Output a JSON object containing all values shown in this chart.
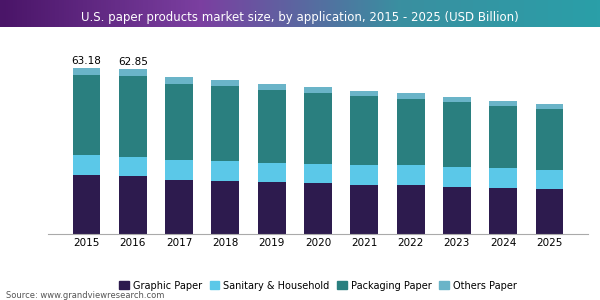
{
  "title": "U.S. paper products market size, by application, 2015 - 2025 (USD Billion)",
  "years": [
    2015,
    2016,
    2017,
    2018,
    2019,
    2020,
    2021,
    2022,
    2023,
    2024,
    2025
  ],
  "graphic_paper": [
    22.5,
    22.0,
    20.5,
    20.2,
    19.8,
    19.3,
    18.8,
    18.5,
    18.0,
    17.5,
    17.0
  ],
  "sanitary_household": [
    7.5,
    7.5,
    7.8,
    7.6,
    7.4,
    7.4,
    7.6,
    7.6,
    7.5,
    7.5,
    7.5
  ],
  "packaging_paper": [
    30.5,
    30.7,
    29.0,
    28.6,
    27.8,
    27.0,
    26.0,
    25.5,
    24.8,
    23.8,
    23.0
  ],
  "others_paper": [
    2.68,
    2.65,
    2.5,
    2.4,
    2.3,
    2.2,
    2.1,
    2.1,
    2.0,
    2.0,
    1.9
  ],
  "totals_2015_2016": [
    63.18,
    62.85
  ],
  "colors": {
    "graphic_paper": "#2d1b4e",
    "sanitary_household": "#5bc8e8",
    "packaging_paper": "#2a7f7f",
    "others_paper": "#6ab4c8"
  },
  "header_colors": [
    "#4a1a6e",
    "#7b3fa0",
    "#2a7f8f"
  ],
  "legend_labels": [
    "Graphic Paper",
    "Sanitary & Household",
    "Packaging Paper",
    "Others Paper"
  ],
  "source": "Source: www.grandviewresearch.com",
  "ylim": [
    0,
    72
  ],
  "bar_width": 0.6,
  "bg_color": "#ffffff",
  "title_fontsize": 8.5,
  "tick_fontsize": 7.5,
  "legend_fontsize": 7,
  "source_fontsize": 6
}
